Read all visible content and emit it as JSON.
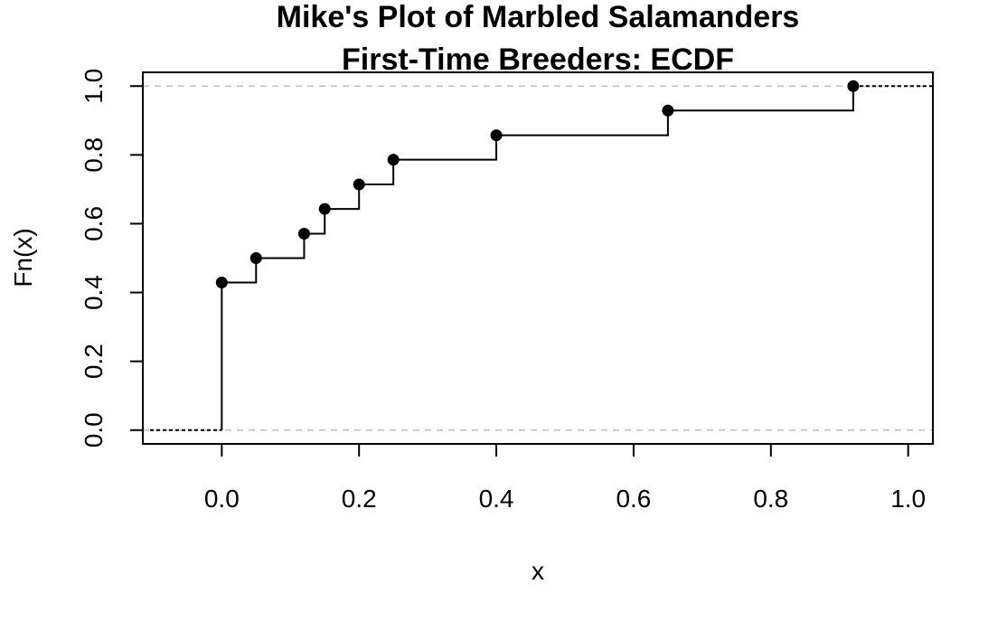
{
  "chart_data": {
    "type": "line",
    "subtype": "ecdf-step",
    "title_lines": [
      "Mike's Plot of Marbled Salamanders",
      "First-Time Breeders: ECDF"
    ],
    "xlabel": "x",
    "ylabel": "Fn(x)",
    "xlim": [
      -0.115,
      1.036
    ],
    "ylim": [
      -0.04,
      1.04
    ],
    "x_ticks": [
      0.0,
      0.2,
      0.4,
      0.6,
      0.8,
      1.0
    ],
    "x_tick_labels": [
      "0.0",
      "0.2",
      "0.4",
      "0.6",
      "0.8",
      "1.0"
    ],
    "y_ticks": [
      0.0,
      0.2,
      0.4,
      0.6,
      0.8,
      1.0
    ],
    "y_tick_labels": [
      "0.0",
      "0.2",
      "0.4",
      "0.6",
      "0.8",
      "1.0"
    ],
    "reference_lines_y": [
      0.0,
      1.0
    ],
    "points": [
      {
        "x": 0.0,
        "y": 0.429
      },
      {
        "x": 0.05,
        "y": 0.5
      },
      {
        "x": 0.12,
        "y": 0.571
      },
      {
        "x": 0.15,
        "y": 0.643
      },
      {
        "x": 0.2,
        "y": 0.714
      },
      {
        "x": 0.25,
        "y": 0.786
      },
      {
        "x": 0.4,
        "y": 0.857
      },
      {
        "x": 0.65,
        "y": 0.929
      },
      {
        "x": 0.92,
        "y": 1.0
      }
    ],
    "grid": false,
    "legend": "none",
    "colors": {
      "line": "#000000",
      "points": "#000000",
      "reference": "#bebebe",
      "frame": "#000000"
    }
  }
}
